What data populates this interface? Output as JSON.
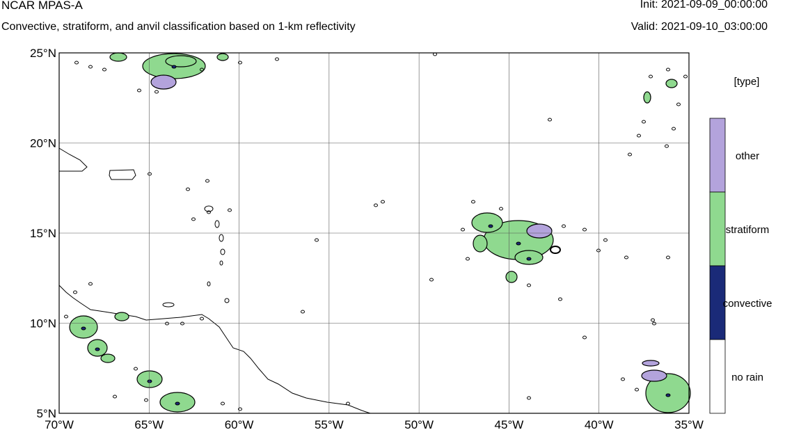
{
  "header": {
    "model": "NCAR MPAS-A",
    "description": "Convective, stratiform, and anvil classification based on 1-km reflectivity",
    "init": "Init: 2021-09-09_00:00:00",
    "valid": "Valid: 2021-09-10_03:00:00"
  },
  "map": {
    "lat_labels": [
      "25°N",
      "20°N",
      "15°N",
      "10°N",
      "5°N"
    ],
    "lon_labels": [
      "70°W",
      "65°W",
      "60°W",
      "55°W",
      "50°W",
      "45°W",
      "40°W",
      "35°W"
    ],
    "lat_range": [
      5,
      25
    ],
    "lon_range": [
      -70,
      -35
    ]
  },
  "legend": {
    "title": "[type]",
    "categories": [
      {
        "label": "other",
        "color": "#b3a3dc"
      },
      {
        "label": "stratiform",
        "color": "#8fd98f"
      },
      {
        "label": "convective",
        "color": "#1a2a78"
      },
      {
        "label": "no rain",
        "color": "#ffffff"
      }
    ]
  }
}
